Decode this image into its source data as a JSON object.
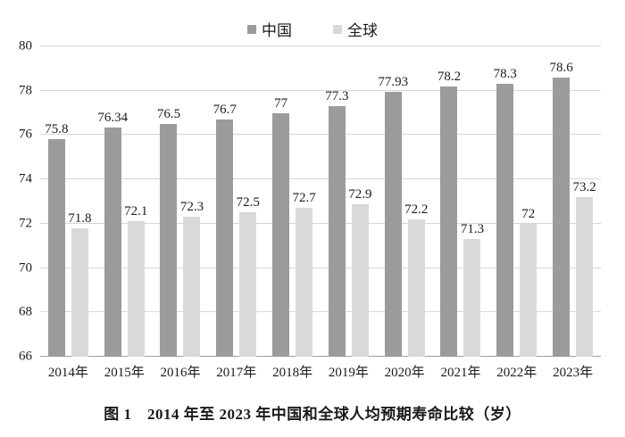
{
  "caption": "图 1　2014 年至 2023 年中国和全球人均预期寿命比较（岁）",
  "chart_data": {
    "type": "bar",
    "title": "",
    "xlabel": "",
    "ylabel": "",
    "categories": [
      "2014年",
      "2015年",
      "2016年",
      "2017年",
      "2018年",
      "2019年",
      "2020年",
      "2021年",
      "2022年",
      "2023年"
    ],
    "series": [
      {
        "id": "china",
        "name": "中国",
        "color": "#9b9b9b",
        "values": [
          75.8,
          76.34,
          76.5,
          76.7,
          77,
          77.3,
          77.93,
          78.2,
          78.3,
          78.6
        ]
      },
      {
        "id": "global",
        "name": "全球",
        "color": "#d9d9d9",
        "values": [
          71.8,
          72.1,
          72.3,
          72.5,
          72.7,
          72.9,
          72.2,
          71.3,
          72,
          73.2
        ]
      }
    ],
    "ylim": [
      66,
      80
    ],
    "yticks": [
      66,
      68,
      70,
      72,
      74,
      76,
      78,
      80
    ],
    "grid": true,
    "grid_color": "#d6d6d6",
    "axis_color": "#9e9e9e",
    "legend_position": "top",
    "value_labels": true
  }
}
